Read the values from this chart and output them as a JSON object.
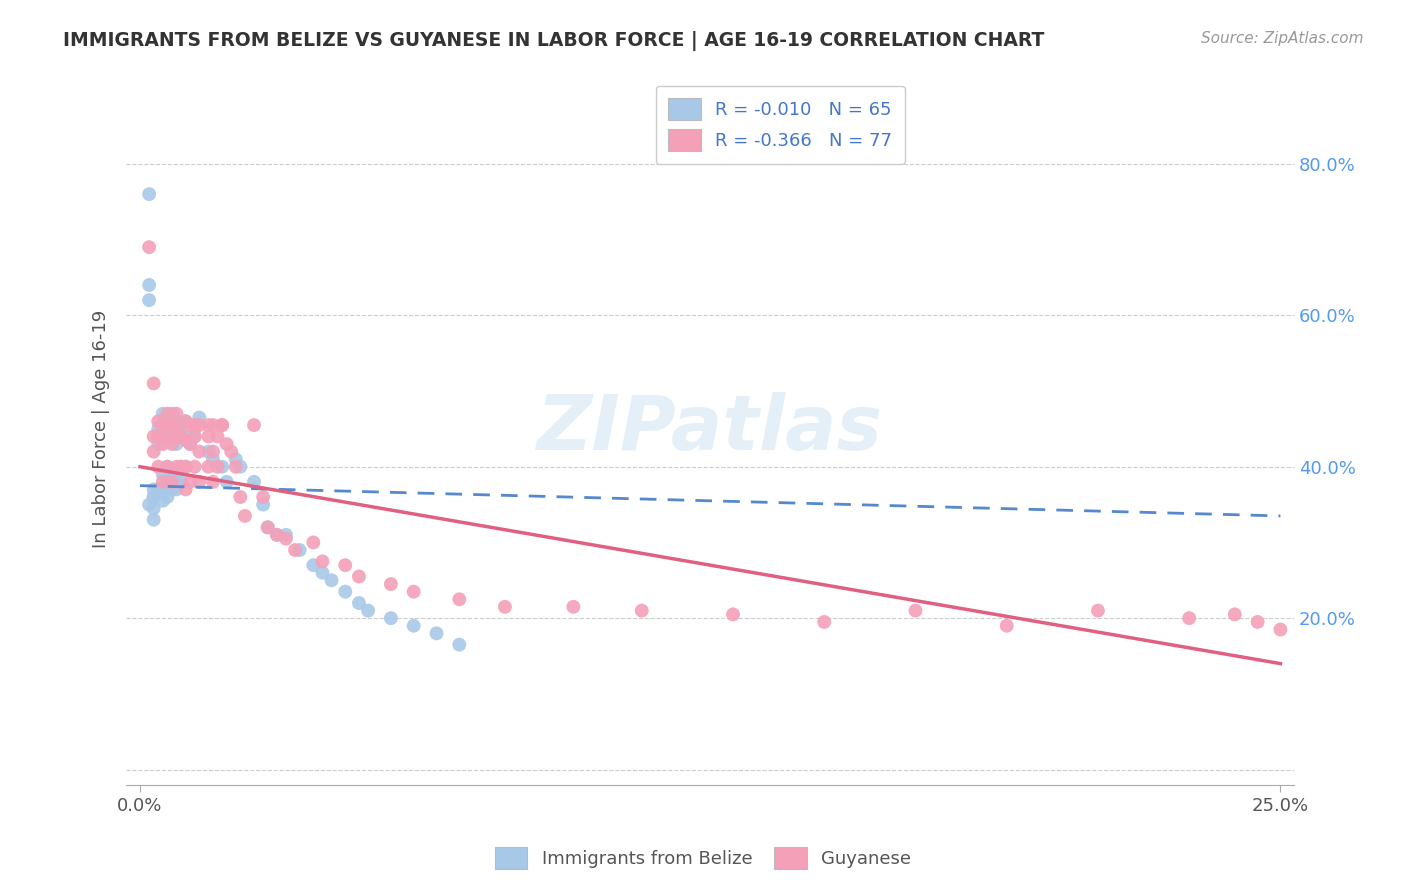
{
  "title": "IMMIGRANTS FROM BELIZE VS GUYANESE IN LABOR FORCE | AGE 16-19 CORRELATION CHART",
  "source": "Source: ZipAtlas.com",
  "ylabel": "In Labor Force | Age 16-19",
  "xlim": [
    -0.003,
    0.253
  ],
  "ylim": [
    -0.02,
    0.92
  ],
  "color_belize": "#a8c8e8",
  "color_guyanese": "#f4a0b8",
  "line_color_belize": "#5588cc",
  "line_color_guyanese": "#e06080",
  "background_color": "#ffffff",
  "grid_color": "#cccccc",
  "belize_x": [
    0.002,
    0.002,
    0.002,
    0.003,
    0.003,
    0.003,
    0.003,
    0.004,
    0.004,
    0.004,
    0.004,
    0.005,
    0.005,
    0.005,
    0.005,
    0.005,
    0.006,
    0.006,
    0.006,
    0.006,
    0.007,
    0.007,
    0.007,
    0.008,
    0.008,
    0.008,
    0.009,
    0.009,
    0.01,
    0.01,
    0.01,
    0.011,
    0.012,
    0.013,
    0.015,
    0.016,
    0.018,
    0.019,
    0.021,
    0.022,
    0.025,
    0.027,
    0.028,
    0.03,
    0.032,
    0.035,
    0.038,
    0.04,
    0.042,
    0.045,
    0.048,
    0.05,
    0.055,
    0.06,
    0.065,
    0.07,
    0.002,
    0.003,
    0.004,
    0.005,
    0.006,
    0.007,
    0.008,
    0.009
  ],
  "belize_y": [
    0.76,
    0.64,
    0.62,
    0.37,
    0.36,
    0.345,
    0.33,
    0.45,
    0.44,
    0.43,
    0.37,
    0.47,
    0.45,
    0.44,
    0.39,
    0.37,
    0.46,
    0.44,
    0.4,
    0.38,
    0.47,
    0.44,
    0.39,
    0.46,
    0.43,
    0.38,
    0.445,
    0.4,
    0.46,
    0.44,
    0.4,
    0.43,
    0.44,
    0.465,
    0.42,
    0.41,
    0.4,
    0.38,
    0.41,
    0.4,
    0.38,
    0.35,
    0.32,
    0.31,
    0.31,
    0.29,
    0.27,
    0.26,
    0.25,
    0.235,
    0.22,
    0.21,
    0.2,
    0.19,
    0.18,
    0.165,
    0.35,
    0.36,
    0.37,
    0.355,
    0.36,
    0.37,
    0.37,
    0.38
  ],
  "guyanese_x": [
    0.002,
    0.003,
    0.003,
    0.003,
    0.004,
    0.004,
    0.004,
    0.005,
    0.005,
    0.005,
    0.006,
    0.006,
    0.006,
    0.006,
    0.007,
    0.007,
    0.007,
    0.008,
    0.008,
    0.008,
    0.009,
    0.009,
    0.01,
    0.01,
    0.01,
    0.011,
    0.011,
    0.011,
    0.012,
    0.012,
    0.013,
    0.013,
    0.013,
    0.015,
    0.015,
    0.016,
    0.016,
    0.016,
    0.017,
    0.017,
    0.018,
    0.019,
    0.02,
    0.021,
    0.022,
    0.023,
    0.025,
    0.027,
    0.028,
    0.03,
    0.032,
    0.034,
    0.038,
    0.04,
    0.045,
    0.048,
    0.055,
    0.06,
    0.07,
    0.08,
    0.095,
    0.11,
    0.13,
    0.15,
    0.17,
    0.19,
    0.21,
    0.23,
    0.24,
    0.245,
    0.25,
    0.008,
    0.01,
    0.012,
    0.015,
    0.018
  ],
  "guyanese_y": [
    0.69,
    0.51,
    0.44,
    0.42,
    0.46,
    0.44,
    0.4,
    0.455,
    0.43,
    0.38,
    0.47,
    0.455,
    0.44,
    0.4,
    0.455,
    0.43,
    0.38,
    0.47,
    0.44,
    0.4,
    0.44,
    0.4,
    0.435,
    0.4,
    0.37,
    0.455,
    0.43,
    0.38,
    0.44,
    0.4,
    0.455,
    0.42,
    0.38,
    0.44,
    0.4,
    0.455,
    0.42,
    0.38,
    0.44,
    0.4,
    0.455,
    0.43,
    0.42,
    0.4,
    0.36,
    0.335,
    0.455,
    0.36,
    0.32,
    0.31,
    0.305,
    0.29,
    0.3,
    0.275,
    0.27,
    0.255,
    0.245,
    0.235,
    0.225,
    0.215,
    0.215,
    0.21,
    0.205,
    0.195,
    0.21,
    0.19,
    0.21,
    0.2,
    0.205,
    0.195,
    0.185,
    0.45,
    0.46,
    0.455,
    0.455,
    0.455
  ]
}
